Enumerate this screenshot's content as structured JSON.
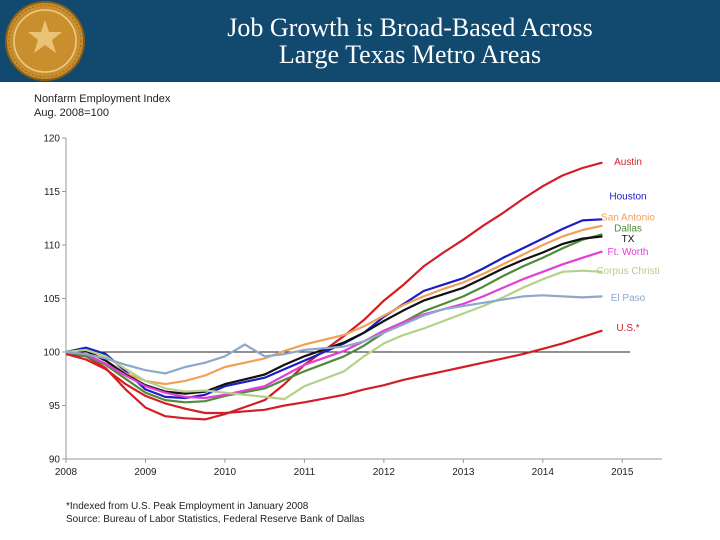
{
  "header": {
    "title_line1": "Job Growth is Broad-Based Across",
    "title_line2": "Large Texas Metro Areas"
  },
  "colors": {
    "banner": "#12496e",
    "seal": "#c98f2e"
  },
  "chart_data": {
    "type": "line",
    "ylabel_line1": "Nonfarm  Employment Index",
    "ylabel_line2": "Aug. 2008=100",
    "xlim": [
      2008,
      2015.5
    ],
    "ylim": [
      90,
      120
    ],
    "x_ticks": [
      2008,
      2009,
      2010,
      2011,
      2012,
      2013,
      2014,
      2015
    ],
    "y_ticks": [
      90,
      95,
      100,
      105,
      110,
      115,
      120
    ],
    "reference_line": 100,
    "series": [
      {
        "name": "Austin",
        "color": "#d21f26",
        "points": [
          [
            2008,
            99.8
          ],
          [
            2008.25,
            99.6
          ],
          [
            2008.5,
            98.5
          ],
          [
            2008.75,
            96.5
          ],
          [
            2009,
            94.8
          ],
          [
            2009.25,
            94.0
          ],
          [
            2009.5,
            93.8
          ],
          [
            2009.75,
            93.7
          ],
          [
            2010,
            94.2
          ],
          [
            2010.5,
            95.5
          ],
          [
            2010.75,
            97.0
          ],
          [
            2011,
            98.8
          ],
          [
            2011.5,
            101.5
          ],
          [
            2011.75,
            103.0
          ],
          [
            2012,
            104.8
          ],
          [
            2012.25,
            106.3
          ],
          [
            2012.5,
            108.0
          ],
          [
            2012.75,
            109.3
          ],
          [
            2013,
            110.5
          ],
          [
            2013.25,
            111.8
          ],
          [
            2013.5,
            113.0
          ],
          [
            2013.75,
            114.3
          ],
          [
            2014,
            115.5
          ],
          [
            2014.25,
            116.5
          ],
          [
            2014.5,
            117.2
          ],
          [
            2014.75,
            117.7
          ]
        ]
      },
      {
        "name": "Houston",
        "color": "#1b1ec4",
        "points": [
          [
            2008,
            100.0
          ],
          [
            2008.25,
            100.4
          ],
          [
            2008.5,
            99.8
          ],
          [
            2008.75,
            98.2
          ],
          [
            2009,
            96.5
          ],
          [
            2009.25,
            95.8
          ],
          [
            2009.5,
            95.7
          ],
          [
            2009.75,
            96.0
          ],
          [
            2010,
            96.8
          ],
          [
            2010.5,
            97.6
          ],
          [
            2010.75,
            98.4
          ],
          [
            2011,
            99.2
          ],
          [
            2011.5,
            100.8
          ],
          [
            2011.75,
            101.8
          ],
          [
            2012,
            103.3
          ],
          [
            2012.25,
            104.5
          ],
          [
            2012.5,
            105.7
          ],
          [
            2012.75,
            106.3
          ],
          [
            2013,
            106.9
          ],
          [
            2013.25,
            107.8
          ],
          [
            2013.5,
            108.8
          ],
          [
            2013.75,
            109.7
          ],
          [
            2014,
            110.6
          ],
          [
            2014.25,
            111.5
          ],
          [
            2014.5,
            112.3
          ],
          [
            2014.75,
            112.4
          ]
        ]
      },
      {
        "name": "San Antonio",
        "color": "#f1a156",
        "points": [
          [
            2008,
            99.8
          ],
          [
            2008.25,
            100.2
          ],
          [
            2008.5,
            99.2
          ],
          [
            2008.75,
            98.0
          ],
          [
            2009,
            97.3
          ],
          [
            2009.25,
            97.0
          ],
          [
            2009.5,
            97.3
          ],
          [
            2009.75,
            97.8
          ],
          [
            2010,
            98.6
          ],
          [
            2010.5,
            99.4
          ],
          [
            2010.75,
            100.1
          ],
          [
            2011,
            100.7
          ],
          [
            2011.5,
            101.6
          ],
          [
            2011.75,
            102.4
          ],
          [
            2012,
            103.4
          ],
          [
            2012.25,
            104.4
          ],
          [
            2012.5,
            105.2
          ],
          [
            2012.75,
            105.9
          ],
          [
            2013,
            106.5
          ],
          [
            2013.25,
            107.3
          ],
          [
            2013.5,
            108.2
          ],
          [
            2013.75,
            109.1
          ],
          [
            2014,
            110.0
          ],
          [
            2014.25,
            110.8
          ],
          [
            2014.5,
            111.4
          ],
          [
            2014.75,
            111.8
          ]
        ]
      },
      {
        "name": "Dallas",
        "color": "#4f8c3a",
        "points": [
          [
            2008,
            100.0
          ],
          [
            2008.25,
            99.6
          ],
          [
            2008.5,
            98.8
          ],
          [
            2008.75,
            97.5
          ],
          [
            2009,
            96.2
          ],
          [
            2009.25,
            95.5
          ],
          [
            2009.5,
            95.3
          ],
          [
            2009.75,
            95.4
          ],
          [
            2010,
            95.9
          ],
          [
            2010.5,
            96.6
          ],
          [
            2010.75,
            97.4
          ],
          [
            2011,
            98.2
          ],
          [
            2011.5,
            99.6
          ],
          [
            2011.75,
            100.6
          ],
          [
            2012,
            101.8
          ],
          [
            2012.25,
            102.8
          ],
          [
            2012.5,
            103.8
          ],
          [
            2012.75,
            104.5
          ],
          [
            2013,
            105.2
          ],
          [
            2013.25,
            106.1
          ],
          [
            2013.5,
            107.1
          ],
          [
            2013.75,
            108.0
          ],
          [
            2014,
            108.8
          ],
          [
            2014.25,
            109.7
          ],
          [
            2014.5,
            110.5
          ],
          [
            2014.75,
            111.0
          ]
        ]
      },
      {
        "name": "TX",
        "color": "#111111",
        "points": [
          [
            2008,
            100.0
          ],
          [
            2008.25,
            100.1
          ],
          [
            2008.5,
            99.2
          ],
          [
            2008.75,
            97.9
          ],
          [
            2009,
            96.9
          ],
          [
            2009.25,
            96.3
          ],
          [
            2009.5,
            96.1
          ],
          [
            2009.75,
            96.3
          ],
          [
            2010,
            97.0
          ],
          [
            2010.5,
            97.9
          ],
          [
            2010.75,
            98.8
          ],
          [
            2011,
            99.6
          ],
          [
            2011.5,
            100.9
          ],
          [
            2011.75,
            101.8
          ],
          [
            2012,
            102.9
          ],
          [
            2012.25,
            103.9
          ],
          [
            2012.5,
            104.8
          ],
          [
            2012.75,
            105.4
          ],
          [
            2013,
            106.0
          ],
          [
            2013.25,
            106.9
          ],
          [
            2013.5,
            107.8
          ],
          [
            2013.75,
            108.6
          ],
          [
            2014,
            109.3
          ],
          [
            2014.25,
            110.1
          ],
          [
            2014.5,
            110.6
          ],
          [
            2014.75,
            110.8
          ]
        ]
      },
      {
        "name": "Ft. Worth",
        "color": "#e040d8",
        "points": [
          [
            2008,
            100.0
          ],
          [
            2008.25,
            99.8
          ],
          [
            2008.5,
            98.9
          ],
          [
            2008.75,
            97.8
          ],
          [
            2009,
            96.8
          ],
          [
            2009.25,
            96.2
          ],
          [
            2009.5,
            95.8
          ],
          [
            2009.75,
            95.7
          ],
          [
            2010,
            96.0
          ],
          [
            2010.5,
            96.8
          ],
          [
            2010.75,
            97.8
          ],
          [
            2011,
            98.8
          ],
          [
            2011.5,
            100.1
          ],
          [
            2011.75,
            101.0
          ],
          [
            2012,
            102.0
          ],
          [
            2012.25,
            102.8
          ],
          [
            2012.5,
            103.5
          ],
          [
            2012.75,
            104.0
          ],
          [
            2013,
            104.5
          ],
          [
            2013.25,
            105.2
          ],
          [
            2013.5,
            106.0
          ],
          [
            2013.75,
            106.8
          ],
          [
            2014,
            107.5
          ],
          [
            2014.25,
            108.2
          ],
          [
            2014.5,
            108.8
          ],
          [
            2014.75,
            109.4
          ]
        ]
      },
      {
        "name": "Corpus Christi",
        "color": "#b4d18a",
        "points": [
          [
            2008,
            100.0
          ],
          [
            2008.25,
            100.2
          ],
          [
            2008.5,
            99.6
          ],
          [
            2008.75,
            98.4
          ],
          [
            2009,
            97.3
          ],
          [
            2009.25,
            96.6
          ],
          [
            2009.5,
            96.3
          ],
          [
            2009.75,
            96.4
          ],
          [
            2010,
            96.2
          ],
          [
            2010.5,
            95.8
          ],
          [
            2010.75,
            95.6
          ],
          [
            2011,
            96.8
          ],
          [
            2011.5,
            98.2
          ],
          [
            2011.75,
            99.6
          ],
          [
            2012,
            100.8
          ],
          [
            2012.25,
            101.6
          ],
          [
            2012.5,
            102.2
          ],
          [
            2012.75,
            102.9
          ],
          [
            2013,
            103.6
          ],
          [
            2013.25,
            104.3
          ],
          [
            2013.5,
            105.1
          ],
          [
            2013.75,
            106.0
          ],
          [
            2014,
            106.8
          ],
          [
            2014.25,
            107.5
          ],
          [
            2014.5,
            107.6
          ],
          [
            2014.75,
            107.5
          ]
        ]
      },
      {
        "name": "El Paso",
        "color": "#8fa8c8",
        "points": [
          [
            2008,
            100.0
          ],
          [
            2008.25,
            99.8
          ],
          [
            2008.5,
            99.4
          ],
          [
            2008.75,
            98.8
          ],
          [
            2009,
            98.3
          ],
          [
            2009.25,
            98.0
          ],
          [
            2009.5,
            98.6
          ],
          [
            2009.75,
            99.0
          ],
          [
            2010,
            99.6
          ],
          [
            2010.25,
            100.7
          ],
          [
            2010.5,
            99.6
          ],
          [
            2010.75,
            99.8
          ],
          [
            2011,
            100.2
          ],
          [
            2011.5,
            100.5
          ],
          [
            2011.75,
            101.0
          ],
          [
            2012,
            101.8
          ],
          [
            2012.25,
            102.6
          ],
          [
            2012.5,
            103.4
          ],
          [
            2012.75,
            104.0
          ],
          [
            2013,
            104.3
          ],
          [
            2013.25,
            104.6
          ],
          [
            2013.5,
            104.9
          ],
          [
            2013.75,
            105.2
          ],
          [
            2014,
            105.3
          ],
          [
            2014.25,
            105.2
          ],
          [
            2014.5,
            105.1
          ],
          [
            2014.75,
            105.2
          ]
        ]
      },
      {
        "name": "U.S.*",
        "color": "#d21f26",
        "points": [
          [
            2008,
            99.8
          ],
          [
            2008.25,
            99.3
          ],
          [
            2008.5,
            98.4
          ],
          [
            2008.75,
            97.0
          ],
          [
            2009,
            95.9
          ],
          [
            2009.25,
            95.2
          ],
          [
            2009.5,
            94.7
          ],
          [
            2009.75,
            94.3
          ],
          [
            2010,
            94.3
          ],
          [
            2010.5,
            94.6
          ],
          [
            2010.75,
            95.0
          ],
          [
            2011,
            95.3
          ],
          [
            2011.5,
            96.0
          ],
          [
            2011.75,
            96.5
          ],
          [
            2012,
            96.9
          ],
          [
            2012.25,
            97.4
          ],
          [
            2012.5,
            97.8
          ],
          [
            2012.75,
            98.2
          ],
          [
            2013,
            98.6
          ],
          [
            2013.25,
            99.0
          ],
          [
            2013.5,
            99.4
          ],
          [
            2013.75,
            99.8
          ],
          [
            2014,
            100.3
          ],
          [
            2014.25,
            100.8
          ],
          [
            2014.5,
            101.4
          ],
          [
            2014.75,
            102.0
          ]
        ]
      }
    ],
    "labels": [
      {
        "text": "Austin",
        "color": "#d21f26",
        "y": 117.8
      },
      {
        "text": "Houston",
        "color": "#1b1ec4",
        "y": 114.6
      },
      {
        "text": "San Antonio",
        "color": "#f1a156",
        "y": 112.6
      },
      {
        "text": "Dallas",
        "color": "#4f8c3a",
        "y": 111.6
      },
      {
        "text": "TX",
        "color": "#111111",
        "y": 110.6
      },
      {
        "text": "Ft. Worth",
        "color": "#e040d8",
        "y": 109.4
      },
      {
        "text": "Corpus Christi",
        "color": "#b4d18a",
        "y": 107.6
      },
      {
        "text": "El Paso",
        "color": "#8fa8c8",
        "y": 105.1
      },
      {
        "text": "U.S.*",
        "color": "#d21f26",
        "y": 102.3
      }
    ]
  },
  "footnotes": {
    "line1": "*Indexed from U.S. Peak Employment in January 2008",
    "line2": "Source: Bureau of Labor Statistics, Federal Reserve Bank of Dallas"
  }
}
